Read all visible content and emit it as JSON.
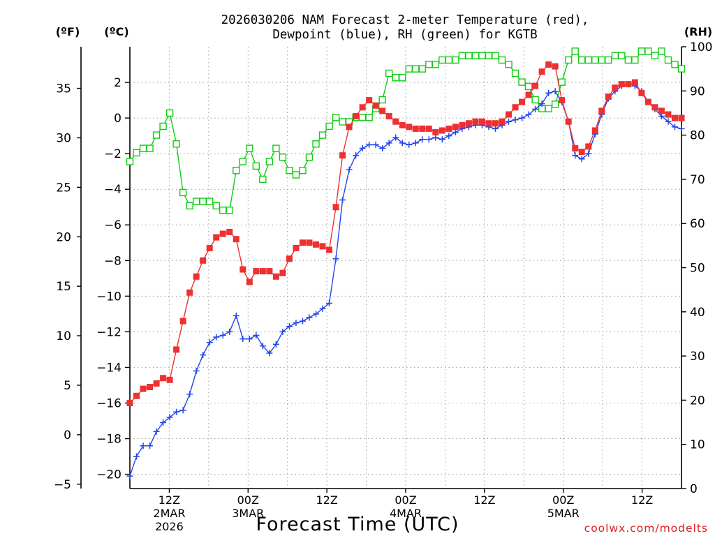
{
  "chart_data": {
    "type": "line",
    "title_line1": "2026030206 NAM Forecast 2-meter Temperature (red),",
    "title_line2": "Dewpoint (blue), RH (green) for KGTB",
    "xlabel": "Forecast Time (UTC)",
    "credit": "coolwx.com/modelts",
    "unit_left_f": "(ºF)",
    "unit_left_c": "(ºC)",
    "unit_right": "(RH)",
    "colors": {
      "temperature": "#ee3030",
      "dewpoint": "#2244ee",
      "rh": "#11cc11",
      "credit": "#dd2020"
    },
    "y_c_range": [
      -20.8,
      4
    ],
    "y_f_ticks": [
      "−5",
      "0",
      "5",
      "10",
      "15",
      "20",
      "25",
      "30",
      "35"
    ],
    "y_c_ticks": [
      "−20",
      "−18",
      "−16",
      "−14",
      "−12",
      "−10",
      "−8",
      "−6",
      "−4",
      "−2",
      "0",
      "2"
    ],
    "y_rh_range": [
      0,
      100
    ],
    "y_rh_ticks": [
      "0",
      "10",
      "20",
      "30",
      "40",
      "50",
      "60",
      "70",
      "80",
      "90",
      "100"
    ],
    "x_range_hours": [
      6,
      90
    ],
    "x_ticks": [
      {
        "hour": 12,
        "label": "12Z",
        "sub1": "2MAR",
        "sub2": "2026"
      },
      {
        "hour": 24,
        "label": "00Z",
        "sub1": "3MAR",
        "sub2": ""
      },
      {
        "hour": 36,
        "label": "12Z",
        "sub1": "",
        "sub2": ""
      },
      {
        "hour": 48,
        "label": "00Z",
        "sub1": "4MAR",
        "sub2": ""
      },
      {
        "hour": 60,
        "label": "12Z",
        "sub1": "",
        "sub2": ""
      },
      {
        "hour": 72,
        "label": "00Z",
        "sub1": "5MAR",
        "sub2": ""
      },
      {
        "hour": 84,
        "label": "12Z",
        "sub1": "",
        "sub2": ""
      }
    ],
    "grid": true,
    "temperature_c": [
      -16.0,
      -15.6,
      -15.2,
      -15.1,
      -14.9,
      -14.6,
      -14.7,
      -13.0,
      -11.4,
      -9.8,
      -8.9,
      -8.0,
      -7.3,
      -6.7,
      -6.5,
      -6.4,
      -6.8,
      -8.5,
      -9.2,
      -8.6,
      -8.6,
      -8.6,
      -8.9,
      -8.7,
      -7.9,
      -7.3,
      -7.0,
      -7.0,
      -7.1,
      -7.2,
      -7.4,
      -5.0,
      -2.1,
      -0.5,
      0.1,
      0.6,
      1.0,
      0.7,
      0.4,
      0.1,
      -0.2,
      -0.4,
      -0.5,
      -0.6,
      -0.6,
      -0.6,
      -0.8,
      -0.7,
      -0.6,
      -0.5,
      -0.4,
      -0.3,
      -0.2,
      -0.2,
      -0.3,
      -0.3,
      -0.2,
      0.2,
      0.6,
      0.9,
      1.3,
      1.8,
      2.6,
      3.0,
      2.9,
      1.0,
      -0.2,
      -1.7,
      -1.9,
      -1.6,
      -0.7,
      0.4,
      1.2,
      1.7,
      1.9,
      1.9,
      2.0,
      1.4,
      0.9,
      0.6,
      0.4,
      0.2,
      0.0,
      0.0
    ],
    "dewpoint_c": [
      -20.1,
      -19.0,
      -18.4,
      -18.4,
      -17.6,
      -17.1,
      -16.8,
      -16.5,
      -16.4,
      -15.5,
      -14.2,
      -13.3,
      -12.6,
      -12.3,
      -12.2,
      -12.0,
      -11.1,
      -12.4,
      -12.4,
      -12.2,
      -12.8,
      -13.2,
      -12.7,
      -12.0,
      -11.7,
      -11.5,
      -11.4,
      -11.2,
      -11.0,
      -10.7,
      -10.4,
      -7.9,
      -4.6,
      -2.9,
      -2.1,
      -1.7,
      -1.5,
      -1.5,
      -1.7,
      -1.4,
      -1.1,
      -1.4,
      -1.5,
      -1.4,
      -1.2,
      -1.2,
      -1.1,
      -1.2,
      -1.0,
      -0.8,
      -0.6,
      -0.5,
      -0.4,
      -0.4,
      -0.5,
      -0.6,
      -0.4,
      -0.2,
      -0.1,
      0.0,
      0.2,
      0.5,
      0.8,
      1.4,
      1.5,
      0.9,
      -0.2,
      -2.1,
      -2.3,
      -2.0,
      -0.9,
      0.2,
      1.1,
      1.5,
      1.8,
      1.9,
      1.8,
      1.5,
      0.9,
      0.5,
      0.1,
      -0.2,
      -0.5,
      -0.6
    ],
    "rh_pct": [
      74,
      76,
      77,
      77,
      80,
      82,
      85,
      78,
      67,
      64,
      65,
      65,
      65,
      64,
      63,
      63,
      72,
      74,
      77,
      73,
      70,
      74,
      77,
      75,
      72,
      71,
      72,
      75,
      78,
      80,
      82,
      84,
      83,
      83,
      84,
      84,
      84,
      86,
      88,
      94,
      93,
      93,
      95,
      95,
      95,
      96,
      96,
      97,
      97,
      97,
      98,
      98,
      98,
      98,
      98,
      98,
      97,
      96,
      94,
      92,
      91,
      88,
      86,
      86,
      87,
      92,
      97,
      99,
      97,
      97,
      97,
      97,
      97,
      98,
      98,
      97,
      97,
      99,
      99,
      98,
      99,
      97,
      96,
      95
    ],
    "rh_markers": [
      0,
      1,
      2,
      3,
      4,
      5,
      6,
      7,
      8,
      9,
      10,
      11,
      12,
      13,
      14,
      15,
      16,
      17,
      18,
      19,
      20,
      21,
      22,
      23,
      24,
      25,
      26,
      27,
      28,
      29,
      30,
      31,
      32,
      33,
      34,
      35,
      36,
      37,
      38,
      39,
      40,
      41,
      42,
      43,
      44,
      45,
      46,
      47,
      48,
      49,
      50,
      51,
      52,
      53,
      54,
      55,
      56,
      57,
      58,
      59,
      60,
      61,
      62,
      63,
      64,
      65,
      66,
      67,
      68,
      69,
      70,
      71,
      72,
      73,
      74,
      75,
      76,
      77,
      78,
      79,
      80,
      81,
      82,
      83
    ]
  }
}
